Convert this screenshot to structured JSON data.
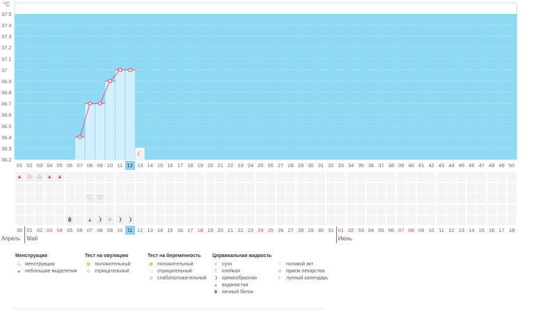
{
  "unit_label": "°C",
  "y_ticks": [
    "37.5",
    "37.4",
    "37.3",
    "37.2",
    "37.1",
    "37",
    "36.9",
    "36.8",
    "36.7",
    "36.6",
    "36.5",
    "36.4",
    "36.3",
    "36.2"
  ],
  "cycle_days": [
    "01",
    "02",
    "03",
    "04",
    "05",
    "06",
    "07",
    "08",
    "09",
    "10",
    "11",
    "12",
    "13",
    "14",
    "15",
    "16",
    "17",
    "18",
    "19",
    "20",
    "21",
    "22",
    "23",
    "24",
    "25",
    "26",
    "27",
    "28",
    "29",
    "30",
    "31",
    "32",
    "33",
    "34",
    "35",
    "36",
    "37",
    "38",
    "39",
    "40",
    "41",
    "42",
    "43",
    "44",
    "45",
    "46",
    "47",
    "48",
    "49",
    "50"
  ],
  "selected_cycle_day": 12,
  "temperatures": [
    {
      "day": 7,
      "value": 36.4
    },
    {
      "day": 8,
      "value": 36.7
    },
    {
      "day": 9,
      "value": 36.7
    },
    {
      "day": 10,
      "value": 36.9
    },
    {
      "day": 11,
      "value": 37.0
    },
    {
      "day": 12,
      "value": 37.0
    }
  ],
  "moon_day": 13,
  "dates": [
    "30",
    "01",
    "02",
    "03",
    "04",
    "05",
    "06",
    "07",
    "08",
    "09",
    "10",
    "11",
    "12",
    "13",
    "14",
    "15",
    "16",
    "17",
    "18",
    "19",
    "20",
    "21",
    "22",
    "23",
    "24",
    "25",
    "26",
    "27",
    "28",
    "29",
    "30",
    "31",
    "01",
    "02",
    "03",
    "04",
    "05",
    "06",
    "07",
    "08",
    "09",
    "10",
    "11",
    "12",
    "13",
    "14",
    "15",
    "16",
    "17",
    "18"
  ],
  "weekend_date_indexes": [
    3,
    4,
    10,
    17,
    18,
    24,
    25,
    31,
    32,
    38,
    39,
    45,
    46
  ],
  "months": [
    {
      "label": "Апрель",
      "start": 0
    },
    {
      "label": "Май",
      "start": 1
    },
    {
      "label": "Июнь",
      "start": 32
    }
  ],
  "rows": {
    "menstruation": [
      {
        "day": 1,
        "icon": "spotting"
      },
      {
        "day": 2,
        "icon": "menstruation"
      },
      {
        "day": 3,
        "icon": "menstruation"
      },
      {
        "day": 4,
        "icon": "spotting"
      },
      {
        "day": 5,
        "icon": "spotting"
      }
    ],
    "intercourse": [
      {
        "day": 8,
        "icon": "heart"
      },
      {
        "day": 9,
        "icon": "heart"
      }
    ],
    "cervical": [
      {
        "day": 6,
        "icon": "egg-white"
      },
      {
        "day": 8,
        "icon": "watery"
      },
      {
        "day": 9,
        "icon": "creamy"
      },
      {
        "day": 10,
        "icon": "dry"
      },
      {
        "day": 11,
        "icon": "creamy"
      },
      {
        "day": 12,
        "icon": "creamy"
      }
    ]
  },
  "legend": [
    {
      "title": "Менструация",
      "items": [
        {
          "icon": "menstruation",
          "label": "менструация"
        },
        {
          "icon": "spotting",
          "label": "небольшие выделения"
        }
      ]
    },
    {
      "title": "Тест на овуляцию",
      "items": [
        {
          "icon": "ovu-pos",
          "label": "положительный"
        },
        {
          "icon": "ovu-neg",
          "label": "отрицательный"
        }
      ]
    },
    {
      "title": "Тест на беременность",
      "items": [
        {
          "icon": "preg-pos",
          "label": "положительный"
        },
        {
          "icon": "preg-neg",
          "label": "отрицательный"
        },
        {
          "icon": "preg-weak",
          "label": "слабоположительный"
        }
      ]
    },
    {
      "title": "Цервикальная жидкость",
      "items": [
        {
          "icon": "dry",
          "label": "сухо"
        },
        {
          "icon": "sticky",
          "label": "клейкая"
        },
        {
          "icon": "creamy",
          "label": "кремообразная"
        },
        {
          "icon": "watery",
          "label": "водянистая"
        },
        {
          "icon": "egg-white",
          "label": "яичный белок"
        }
      ]
    },
    {
      "title": "",
      "items": [
        {
          "icon": "heart",
          "label": "половой акт"
        },
        {
          "icon": "pill",
          "label": "прием лекарства"
        },
        {
          "icon": "moon",
          "label": "лунный календарь"
        }
      ]
    }
  ],
  "colors": {
    "chart_bg": "#8fd9f3",
    "bar": "#d3effb",
    "line": "#e8557e",
    "accent_red": "#e8406a"
  }
}
